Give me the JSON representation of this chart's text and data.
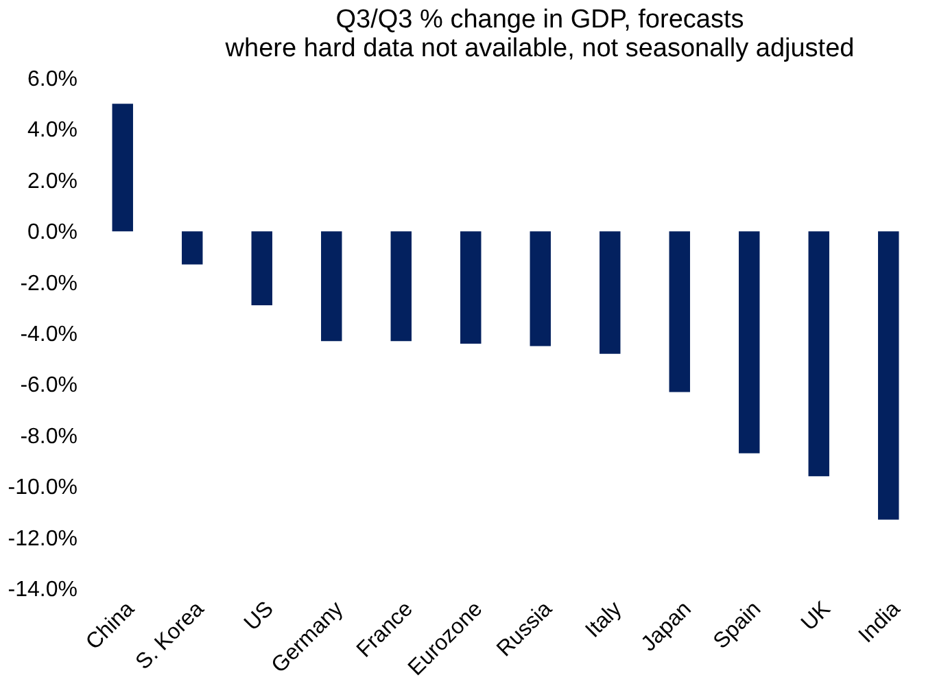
{
  "chart_data": {
    "type": "bar",
    "title": "Q3/Q3 % change in GDP, forecasts\nwhere hard data not available, not seasonally adjusted",
    "categories": [
      "China",
      "S. Korea",
      "US",
      "Germany",
      "France",
      "Eurozone",
      "Russia",
      "Italy",
      "Japan",
      "Spain",
      "UK",
      "India"
    ],
    "values": [
      5.0,
      -1.3,
      -2.9,
      -4.3,
      -4.3,
      -4.4,
      -4.5,
      -4.8,
      -6.3,
      -8.7,
      -9.6,
      -11.3
    ],
    "color": "#03215f",
    "ylim": [
      -14,
      6
    ],
    "yticks": [
      {
        "value": -14,
        "label": "-14.0%"
      },
      {
        "value": -12,
        "label": "-12.0%"
      },
      {
        "value": -10,
        "label": "-10.0%"
      },
      {
        "value": -8,
        "label": "-8.0%"
      },
      {
        "value": -6,
        "label": "-6.0%"
      },
      {
        "value": -4,
        "label": "-4.0%"
      },
      {
        "value": -2,
        "label": "-2.0%"
      },
      {
        "value": 0,
        "label": "0.0%"
      },
      {
        "value": 2,
        "label": "2.0%"
      },
      {
        "value": 4,
        "label": "4.0%"
      },
      {
        "value": 6,
        "label": "6.0%"
      }
    ],
    "grid": false
  }
}
